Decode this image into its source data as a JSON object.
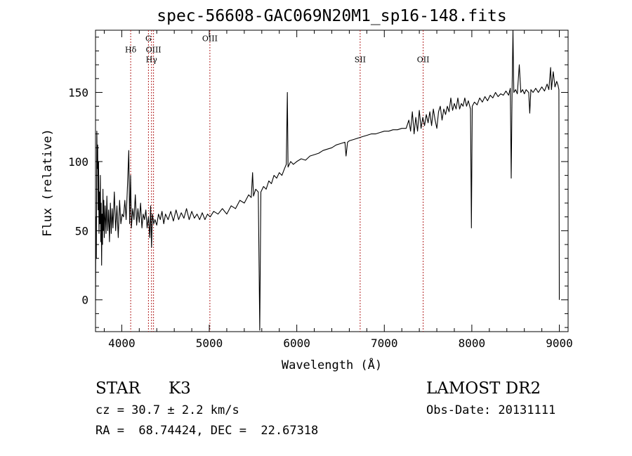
{
  "chart_data": {
    "type": "line",
    "title": "spec-56608-GAC069N20M1_sp16-148.fits",
    "xlabel": "Wavelength (Å)",
    "ylabel": "Flux (relative)",
    "xlim": [
      3700,
      9100
    ],
    "ylim": [
      -23,
      195
    ],
    "xticks": [
      4000,
      5000,
      6000,
      7000,
      8000,
      9000
    ],
    "yticks": [
      0,
      50,
      100,
      150
    ],
    "grid": false,
    "line_color": "#000000",
    "marker_color": "#b22222",
    "series": [
      {
        "values": [
          [
            3700,
            0
          ],
          [
            3705,
            60
          ],
          [
            3710,
            30
          ],
          [
            3715,
            122
          ],
          [
            3720,
            95
          ],
          [
            3725,
            112
          ],
          [
            3730,
            65
          ],
          [
            3735,
            100
          ],
          [
            3740,
            48
          ],
          [
            3745,
            78
          ],
          [
            3750,
            55
          ],
          [
            3755,
            90
          ],
          [
            3760,
            42
          ],
          [
            3765,
            70
          ],
          [
            3770,
            25
          ],
          [
            3775,
            62
          ],
          [
            3780,
            40
          ],
          [
            3785,
            80
          ],
          [
            3790,
            50
          ],
          [
            3795,
            72
          ],
          [
            3800,
            45
          ],
          [
            3810,
            68
          ],
          [
            3820,
            48
          ],
          [
            3830,
            75
          ],
          [
            3840,
            50
          ],
          [
            3850,
            65
          ],
          [
            3860,
            42
          ],
          [
            3870,
            70
          ],
          [
            3880,
            48
          ],
          [
            3890,
            66
          ],
          [
            3900,
            52
          ],
          [
            3915,
            78
          ],
          [
            3930,
            50
          ],
          [
            3945,
            68
          ],
          [
            3960,
            45
          ],
          [
            3975,
            72
          ],
          [
            3990,
            55
          ],
          [
            4005,
            62
          ],
          [
            4020,
            60
          ],
          [
            4035,
            72
          ],
          [
            4050,
            58
          ],
          [
            4065,
            82
          ],
          [
            4080,
            108
          ],
          [
            4090,
            55
          ],
          [
            4101,
            90
          ],
          [
            4110,
            52
          ],
          [
            4125,
            66
          ],
          [
            4140,
            58
          ],
          [
            4155,
            76
          ],
          [
            4170,
            54
          ],
          [
            4185,
            66
          ],
          [
            4200,
            56
          ],
          [
            4215,
            70
          ],
          [
            4230,
            52
          ],
          [
            4245,
            62
          ],
          [
            4260,
            58
          ],
          [
            4275,
            65
          ],
          [
            4290,
            52
          ],
          [
            4305,
            60
          ],
          [
            4320,
            45
          ],
          [
            4330,
            68
          ],
          [
            4340,
            38
          ],
          [
            4350,
            62
          ],
          [
            4365,
            55
          ],
          [
            4380,
            58
          ],
          [
            4400,
            54
          ],
          [
            4420,
            62
          ],
          [
            4440,
            58
          ],
          [
            4460,
            64
          ],
          [
            4480,
            55
          ],
          [
            4500,
            62
          ],
          [
            4530,
            58
          ],
          [
            4560,
            64
          ],
          [
            4590,
            57
          ],
          [
            4620,
            65
          ],
          [
            4650,
            58
          ],
          [
            4680,
            63
          ],
          [
            4710,
            59
          ],
          [
            4740,
            66
          ],
          [
            4770,
            58
          ],
          [
            4800,
            64
          ],
          [
            4830,
            59
          ],
          [
            4860,
            62
          ],
          [
            4890,
            58
          ],
          [
            4920,
            63
          ],
          [
            4950,
            58
          ],
          [
            4980,
            62
          ],
          [
            5010,
            60
          ],
          [
            5050,
            64
          ],
          [
            5100,
            62
          ],
          [
            5150,
            66
          ],
          [
            5200,
            62
          ],
          [
            5250,
            68
          ],
          [
            5300,
            66
          ],
          [
            5350,
            72
          ],
          [
            5400,
            70
          ],
          [
            5450,
            76
          ],
          [
            5480,
            74
          ],
          [
            5495,
            92
          ],
          [
            5505,
            75
          ],
          [
            5530,
            80
          ],
          [
            5560,
            78
          ],
          [
            5577,
            -22
          ],
          [
            5590,
            78
          ],
          [
            5620,
            82
          ],
          [
            5650,
            80
          ],
          [
            5680,
            86
          ],
          [
            5710,
            84
          ],
          [
            5740,
            90
          ],
          [
            5770,
            88
          ],
          [
            5800,
            92
          ],
          [
            5830,
            90
          ],
          [
            5860,
            95
          ],
          [
            5880,
            98
          ],
          [
            5892,
            150
          ],
          [
            5900,
            96
          ],
          [
            5930,
            100
          ],
          [
            5960,
            98
          ],
          [
            6000,
            100
          ],
          [
            6050,
            102
          ],
          [
            6100,
            101
          ],
          [
            6150,
            104
          ],
          [
            6200,
            105
          ],
          [
            6250,
            106
          ],
          [
            6300,
            108
          ],
          [
            6350,
            109
          ],
          [
            6400,
            110
          ],
          [
            6450,
            112
          ],
          [
            6500,
            113
          ],
          [
            6550,
            114
          ],
          [
            6563,
            104
          ],
          [
            6580,
            114
          ],
          [
            6600,
            115
          ],
          [
            6650,
            116
          ],
          [
            6700,
            117
          ],
          [
            6750,
            118
          ],
          [
            6800,
            119
          ],
          [
            6850,
            120
          ],
          [
            6900,
            120
          ],
          [
            6950,
            121
          ],
          [
            7000,
            122
          ],
          [
            7050,
            122
          ],
          [
            7100,
            123
          ],
          [
            7150,
            123
          ],
          [
            7200,
            124
          ],
          [
            7250,
            124
          ],
          [
            7280,
            130
          ],
          [
            7300,
            122
          ],
          [
            7320,
            136
          ],
          [
            7340,
            120
          ],
          [
            7360,
            132
          ],
          [
            7380,
            122
          ],
          [
            7400,
            137
          ],
          [
            7420,
            124
          ],
          [
            7440,
            132
          ],
          [
            7460,
            126
          ],
          [
            7480,
            134
          ],
          [
            7500,
            128
          ],
          [
            7520,
            136
          ],
          [
            7540,
            126
          ],
          [
            7560,
            138
          ],
          [
            7580,
            130
          ],
          [
            7600,
            124
          ],
          [
            7620,
            136
          ],
          [
            7640,
            140
          ],
          [
            7660,
            130
          ],
          [
            7680,
            138
          ],
          [
            7700,
            134
          ],
          [
            7720,
            140
          ],
          [
            7740,
            136
          ],
          [
            7760,
            146
          ],
          [
            7780,
            137
          ],
          [
            7800,
            142
          ],
          [
            7820,
            138
          ],
          [
            7840,
            146
          ],
          [
            7860,
            138
          ],
          [
            7880,
            142
          ],
          [
            7900,
            140
          ],
          [
            7920,
            146
          ],
          [
            7940,
            140
          ],
          [
            7960,
            144
          ],
          [
            7985,
            138
          ],
          [
            7995,
            52
          ],
          [
            8005,
            140
          ],
          [
            8030,
            143
          ],
          [
            8060,
            141
          ],
          [
            8090,
            146
          ],
          [
            8120,
            143
          ],
          [
            8150,
            147
          ],
          [
            8180,
            144
          ],
          [
            8210,
            148
          ],
          [
            8240,
            146
          ],
          [
            8270,
            150
          ],
          [
            8300,
            147
          ],
          [
            8330,
            149
          ],
          [
            8360,
            148
          ],
          [
            8390,
            151
          ],
          [
            8420,
            148
          ],
          [
            8440,
            153
          ],
          [
            8450,
            88
          ],
          [
            8460,
            150
          ],
          [
            8470,
            195
          ],
          [
            8480,
            150
          ],
          [
            8500,
            152
          ],
          [
            8520,
            149
          ],
          [
            8542,
            170
          ],
          [
            8560,
            150
          ],
          [
            8580,
            152
          ],
          [
            8600,
            149
          ],
          [
            8620,
            152
          ],
          [
            8650,
            150
          ],
          [
            8662,
            135
          ],
          [
            8675,
            152
          ],
          [
            8700,
            150
          ],
          [
            8730,
            153
          ],
          [
            8760,
            150
          ],
          [
            8800,
            154
          ],
          [
            8830,
            151
          ],
          [
            8860,
            156
          ],
          [
            8880,
            152
          ],
          [
            8900,
            168
          ],
          [
            8910,
            152
          ],
          [
            8930,
            165
          ],
          [
            8950,
            154
          ],
          [
            8970,
            158
          ],
          [
            8985,
            155
          ],
          [
            8995,
            152
          ],
          [
            9000,
            0
          ]
        ]
      }
    ],
    "lines": [
      {
        "x": 4102,
        "labels": [
          "Hδ"
        ],
        "label_y": 179
      },
      {
        "x": 4305,
        "labels": [
          "G"
        ],
        "label_y": 187
      },
      {
        "x": 4340,
        "labels": [
          "Hγ"
        ],
        "label_y": 172
      },
      {
        "x": 4363,
        "labels": [
          "OIII"
        ],
        "label_y": 179
      },
      {
        "x": 5007,
        "labels": [
          "OIII"
        ],
        "label_y": 187
      },
      {
        "x": 6724,
        "labels": [
          "SII"
        ],
        "label_y": 172
      },
      {
        "x": 7444,
        "labels": [
          "OII"
        ],
        "label_y": 172
      }
    ]
  },
  "info": {
    "object_class": "STAR",
    "subclass": "K3",
    "survey": "LAMOST DR2",
    "cz": "cz = 30.7 ± 2.2 km/s",
    "obs_date": "Obs-Date: 20131111",
    "coords": "RA =  68.74424, DEC =  22.67318"
  }
}
